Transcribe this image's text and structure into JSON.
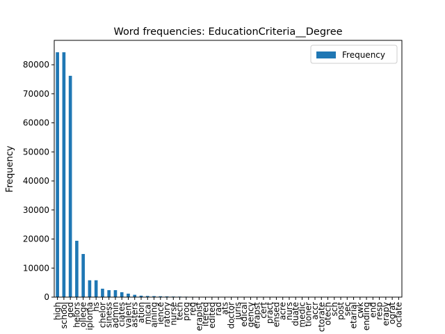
{
  "chart_data": {
    "type": "bar",
    "title": "Word frequencies: EducationCriteria__Degree",
    "ylabel": "Frequency",
    "categories": [
      "high",
      "school",
      "ged",
      "helors",
      "ollege",
      "iploma",
      "hs",
      "chelor",
      "siness",
      "admin",
      "ciates",
      "valent",
      "asters",
      "ation",
      "mical",
      "aining",
      "ience",
      "ratory",
      "nurse",
      "tech",
      "prog",
      "reg",
      "erapist",
      "itered",
      "edited",
      "rad",
      "ats",
      "doctor",
      "juris",
      "edical",
      "gency",
      "erapst",
      "cert",
      "pract",
      "ensed",
      "acre",
      "nurs",
      "duate",
      "medic",
      "tioner",
      "accr",
      "ctorate",
      "otech",
      "sch",
      "post",
      "sec",
      "etarial",
      "cwk",
      "ending",
      "end",
      "resp",
      "erapy",
      "ograt",
      "ociate"
    ],
    "series": [
      {
        "name": "Frequency",
        "color": "#1f77b4",
        "values": [
          84300,
          84300,
          76200,
          19400,
          14850,
          5800,
          5800,
          2900,
          2400,
          2400,
          1700,
          1200,
          800,
          500,
          400,
          350,
          300,
          250,
          200,
          180,
          150,
          130,
          110,
          100,
          90,
          80,
          60,
          50,
          45,
          40,
          35,
          30,
          28,
          25,
          22,
          20,
          18,
          16,
          15,
          14,
          12,
          11,
          10,
          9,
          8,
          7,
          6,
          6,
          5,
          5,
          4,
          4,
          3,
          3
        ]
      }
    ],
    "ylim": [
      0,
      88400
    ],
    "yticks": [
      0,
      10000,
      20000,
      30000,
      40000,
      50000,
      60000,
      70000,
      80000
    ],
    "legend": "upper right"
  }
}
